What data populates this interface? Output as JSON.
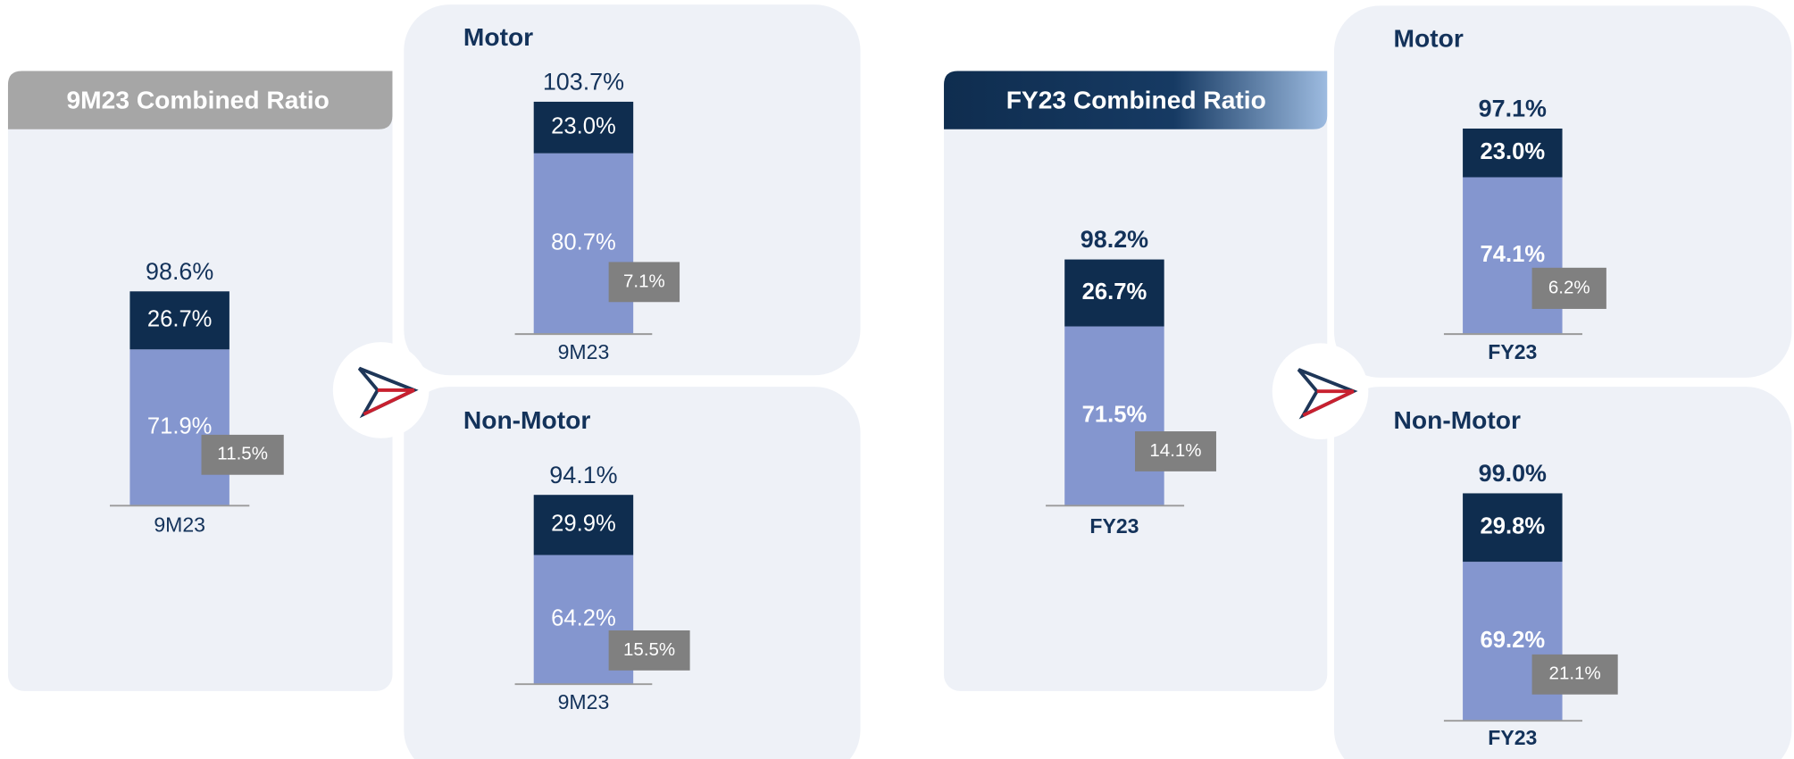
{
  "chart_data": [
    {
      "type": "stacked_bar",
      "title": "9M23 Combined Ratio",
      "categories": [
        "9M23"
      ],
      "ylim": [
        0,
        120
      ],
      "series": [
        {
          "color": "#8496cf",
          "values": [
            71.9
          ],
          "value_labels": [
            "71.9%"
          ]
        },
        {
          "color": "#0f2d4f",
          "values": [
            26.7
          ],
          "value_labels": [
            "26.7%"
          ]
        }
      ],
      "totals": {
        "values": [
          98.6
        ],
        "value_labels": [
          "98.6%"
        ]
      },
      "inset": {
        "color": "#808080",
        "values": [
          11.5
        ],
        "value_labels": [
          "11.5%"
        ]
      }
    },
    {
      "type": "stacked_bar",
      "title": "Motor",
      "categories": [
        "9M23"
      ],
      "ylim": [
        0,
        120
      ],
      "series": [
        {
          "color": "#8496cf",
          "values": [
            80.7
          ],
          "value_labels": [
            "80.7%"
          ]
        },
        {
          "color": "#0f2d4f",
          "values": [
            23.0
          ],
          "value_labels": [
            "23.0%"
          ]
        }
      ],
      "totals": {
        "values": [
          103.7
        ],
        "value_labels": [
          "103.7%"
        ]
      },
      "inset": {
        "color": "#808080",
        "values": [
          7.1
        ],
        "value_labels": [
          "7.1%"
        ]
      }
    },
    {
      "type": "stacked_bar",
      "title": "Non-Motor",
      "categories": [
        "9M23"
      ],
      "ylim": [
        0,
        120
      ],
      "series": [
        {
          "color": "#8496cf",
          "values": [
            64.2
          ],
          "value_labels": [
            "64.2%"
          ]
        },
        {
          "color": "#0f2d4f",
          "values": [
            29.9
          ],
          "value_labels": [
            "29.9%"
          ]
        }
      ],
      "totals": {
        "values": [
          94.1
        ],
        "value_labels": [
          "94.1%"
        ]
      },
      "inset": {
        "color": "#808080",
        "values": [
          15.5
        ],
        "value_labels": [
          "15.5%"
        ]
      }
    },
    {
      "type": "stacked_bar",
      "title": "FY23 Combined Ratio",
      "categories": [
        "FY23"
      ],
      "ylim": [
        0,
        120
      ],
      "series": [
        {
          "color": "#8496cf",
          "values": [
            71.5
          ],
          "value_labels": [
            "71.5%"
          ]
        },
        {
          "color": "#0f2d4f",
          "values": [
            26.7
          ],
          "value_labels": [
            "26.7%"
          ]
        }
      ],
      "totals": {
        "values": [
          98.2
        ],
        "value_labels": [
          "98.2%"
        ]
      },
      "inset": {
        "color": "#808080",
        "values": [
          14.1
        ],
        "value_labels": [
          "14.1%"
        ]
      }
    },
    {
      "type": "stacked_bar",
      "title": "Motor",
      "categories": [
        "FY23"
      ],
      "ylim": [
        0,
        120
      ],
      "series": [
        {
          "color": "#8496cf",
          "values": [
            74.1
          ],
          "value_labels": [
            "74.1%"
          ]
        },
        {
          "color": "#0f2d4f",
          "values": [
            23.0
          ],
          "value_labels": [
            "23.0%"
          ]
        }
      ],
      "totals": {
        "values": [
          97.1
        ],
        "value_labels": [
          "97.1%"
        ]
      },
      "inset": {
        "color": "#808080",
        "values": [
          6.2
        ],
        "value_labels": [
          "6.2%"
        ]
      }
    },
    {
      "type": "stacked_bar",
      "title": "Non-Motor",
      "categories": [
        "FY23"
      ],
      "ylim": [
        0,
        120
      ],
      "series": [
        {
          "color": "#8496cf",
          "values": [
            69.2
          ],
          "value_labels": [
            "69.2%"
          ]
        },
        {
          "color": "#0f2d4f",
          "values": [
            29.8
          ],
          "value_labels": [
            "29.8%"
          ]
        }
      ],
      "totals": {
        "values": [
          99.0
        ],
        "value_labels": [
          "99.0%"
        ]
      },
      "inset": {
        "color": "#808080",
        "values": [
          21.1
        ],
        "value_labels": [
          "21.1%"
        ]
      }
    }
  ]
}
